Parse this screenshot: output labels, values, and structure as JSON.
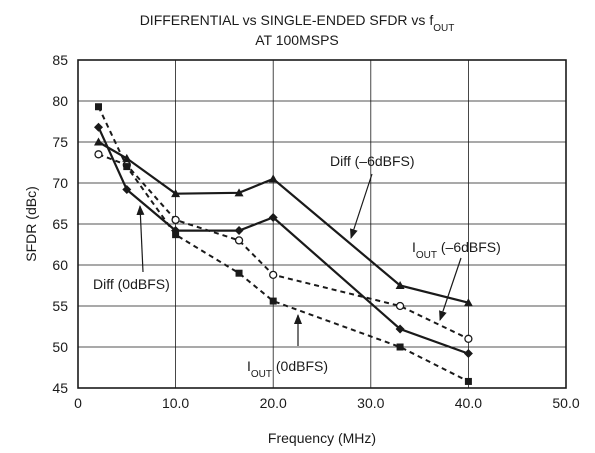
{
  "chart_data": {
    "type": "line",
    "title_line1": "DIFFERENTIAL vs SINGLE-ENDED SFDR vs f",
    "title_line1_sub": "OUT",
    "title_line2": "AT 100MSPS",
    "xlabel": "Frequency (MHz)",
    "ylabel": "SFDR (dBc)",
    "xlim": [
      0,
      50
    ],
    "ylim": [
      45,
      85
    ],
    "xticks": [
      0,
      10,
      20,
      30,
      40,
      50
    ],
    "xtick_labels": [
      "0",
      "10.0",
      "20.0",
      "30.0",
      "40.0",
      "50.0"
    ],
    "yticks": [
      45,
      50,
      55,
      60,
      65,
      70,
      75,
      80,
      85
    ],
    "ytick_labels": [
      "45",
      "50",
      "55",
      "60",
      "65",
      "70",
      "75",
      "80",
      "85"
    ],
    "grid": true,
    "legend": "none",
    "series": [
      {
        "style": "solid",
        "marker": "triangle",
        "x": [
          2.1,
          5.0,
          10.0,
          16.5,
          20.0,
          33.0,
          40.0
        ],
        "y": [
          75.0,
          73.0,
          68.7,
          68.8,
          70.5,
          57.5,
          55.4
        ]
      },
      {
        "style": "solid",
        "marker": "diamond",
        "x": [
          2.1,
          5.0,
          10.0,
          16.5,
          20.0,
          33.0,
          40.0
        ],
        "y": [
          76.8,
          69.2,
          64.2,
          64.2,
          65.8,
          52.2,
          49.2
        ]
      },
      {
        "style": "dashed",
        "marker": "open-circle",
        "x": [
          2.1,
          5.0,
          10.0,
          16.5,
          20.0,
          33.0,
          40.0
        ],
        "y": [
          73.5,
          72.2,
          65.5,
          63.0,
          58.8,
          55.0,
          51.0
        ]
      },
      {
        "style": "dashed",
        "marker": "square",
        "x": [
          2.1,
          5.0,
          10.0,
          16.5,
          20.0,
          33.0,
          40.0
        ],
        "y": [
          79.3,
          72.0,
          63.7,
          59.0,
          55.6,
          50.0,
          45.8
        ]
      }
    ],
    "annotations": [
      {
        "text": "Diff (–6dBFS)"
      },
      {
        "text": "Diff (0dBFS)"
      },
      {
        "text_main": "I",
        "text_sub": "OUT",
        "text_tail": " (–6dBFS)"
      },
      {
        "text_main": "I",
        "text_sub": "OUT",
        "text_tail": " (0dBFS)"
      }
    ]
  }
}
